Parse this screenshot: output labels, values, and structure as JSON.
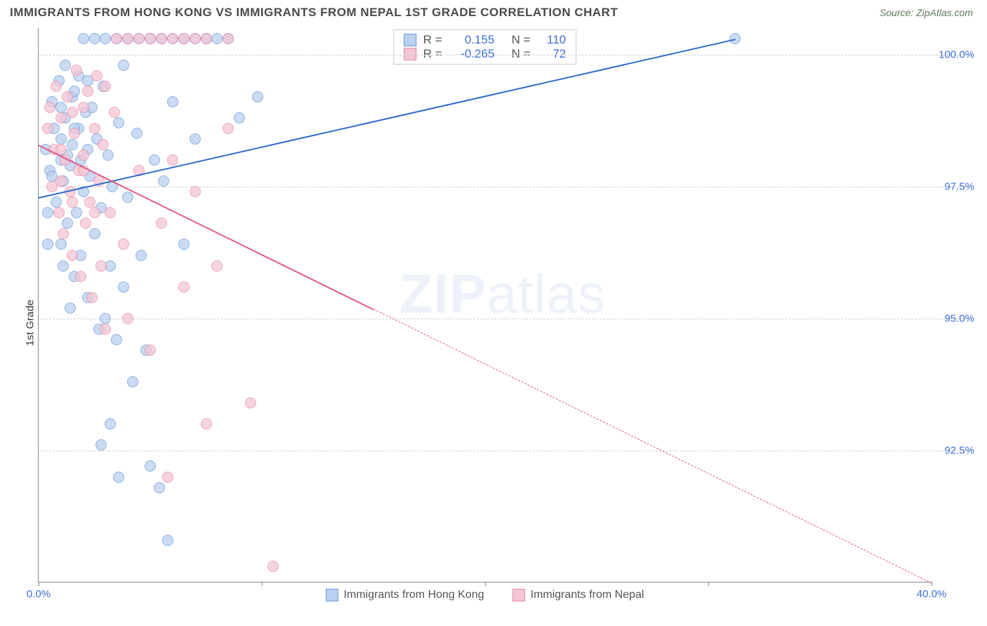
{
  "header": {
    "title": "IMMIGRANTS FROM HONG KONG VS IMMIGRANTS FROM NEPAL 1ST GRADE CORRELATION CHART",
    "title_color": "#4a4a4a",
    "source_label": "Source: ZipAtlas.com",
    "source_color": "#5a7a5a"
  },
  "chart": {
    "type": "scatter",
    "ylabel": "1st Grade",
    "ylabel_color": "#333333",
    "background_color": "#ffffff",
    "grid_color": "#d0d0d0",
    "axis_color": "#888888",
    "xlim": [
      0,
      40
    ],
    "ylim": [
      90,
      100.5
    ],
    "xticks": [
      0,
      10,
      20,
      30,
      40
    ],
    "xtick_labels": [
      "0.0%",
      "",
      "",
      "",
      "40.0%"
    ],
    "xtick_label_color": "#3b6fd6",
    "yticks": [
      92.5,
      95.0,
      97.5,
      100.0
    ],
    "ytick_labels": [
      "92.5%",
      "95.0%",
      "97.5%",
      "100.0%"
    ],
    "ytick_label_color": "#3b6fd6",
    "watermark": {
      "prefix": "ZIP",
      "suffix": "atlas",
      "color": "#9db7e0"
    },
    "series": [
      {
        "name": "Immigrants from Hong Kong",
        "key": "hk",
        "fill": "#b9d0ef",
        "stroke": "#6a99d8",
        "trend_color": "#2f6bd0",
        "trend_width": 2.5,
        "trend_dash": "solid",
        "marker_radius": 8,
        "R": 0.155,
        "N": 110,
        "trend_start": [
          0,
          97.3
        ],
        "trend_end": [
          31.2,
          100.3
        ],
        "points": [
          [
            0.3,
            98.2
          ],
          [
            0.5,
            97.8
          ],
          [
            0.6,
            99.1
          ],
          [
            0.7,
            98.6
          ],
          [
            0.8,
            97.2
          ],
          [
            0.9,
            99.5
          ],
          [
            1.0,
            98.0
          ],
          [
            1.0,
            96.4
          ],
          [
            1.1,
            97.6
          ],
          [
            1.2,
            98.8
          ],
          [
            1.2,
            99.8
          ],
          [
            1.3,
            96.8
          ],
          [
            1.4,
            97.9
          ],
          [
            1.5,
            98.3
          ],
          [
            1.5,
            99.2
          ],
          [
            1.6,
            95.8
          ],
          [
            1.7,
            97.0
          ],
          [
            1.8,
            98.6
          ],
          [
            1.8,
            99.6
          ],
          [
            1.9,
            96.2
          ],
          [
            2.0,
            97.4
          ],
          [
            2.0,
            100.3
          ],
          [
            2.1,
            98.9
          ],
          [
            2.2,
            95.4
          ],
          [
            2.3,
            97.7
          ],
          [
            2.4,
            99.0
          ],
          [
            2.5,
            96.6
          ],
          [
            2.5,
            100.3
          ],
          [
            2.6,
            98.4
          ],
          [
            2.7,
            94.8
          ],
          [
            2.8,
            97.1
          ],
          [
            2.9,
            99.4
          ],
          [
            3.0,
            95.0
          ],
          [
            3.0,
            100.3
          ],
          [
            3.1,
            98.1
          ],
          [
            3.2,
            96.0
          ],
          [
            3.3,
            97.5
          ],
          [
            3.5,
            100.3
          ],
          [
            3.5,
            94.6
          ],
          [
            3.6,
            98.7
          ],
          [
            3.8,
            95.6
          ],
          [
            3.8,
            99.8
          ],
          [
            4.0,
            97.3
          ],
          [
            4.0,
            100.3
          ],
          [
            4.2,
            93.8
          ],
          [
            4.4,
            98.5
          ],
          [
            4.5,
            100.3
          ],
          [
            4.6,
            96.2
          ],
          [
            4.8,
            94.4
          ],
          [
            5.0,
            100.3
          ],
          [
            5.0,
            92.2
          ],
          [
            5.2,
            98.0
          ],
          [
            5.4,
            91.8
          ],
          [
            5.5,
            100.3
          ],
          [
            5.6,
            97.6
          ],
          [
            5.8,
            90.8
          ],
          [
            6.0,
            99.1
          ],
          [
            6.0,
            100.3
          ],
          [
            6.5,
            100.3
          ],
          [
            6.5,
            96.4
          ],
          [
            7.0,
            100.3
          ],
          [
            7.0,
            98.4
          ],
          [
            7.5,
            100.3
          ],
          [
            8.0,
            100.3
          ],
          [
            8.5,
            100.3
          ],
          [
            9.0,
            98.8
          ],
          [
            9.8,
            99.2
          ],
          [
            31.2,
            100.3
          ],
          [
            1.0,
            98.4
          ],
          [
            1.0,
            99.0
          ],
          [
            1.3,
            98.1
          ],
          [
            1.6,
            98.6
          ],
          [
            1.6,
            99.3
          ],
          [
            1.9,
            98.0
          ],
          [
            2.2,
            98.2
          ],
          [
            2.2,
            99.5
          ],
          [
            0.4,
            97.0
          ],
          [
            0.4,
            96.4
          ],
          [
            0.6,
            97.7
          ],
          [
            1.1,
            96.0
          ],
          [
            1.4,
            95.2
          ],
          [
            2.8,
            92.6
          ],
          [
            3.2,
            93.0
          ],
          [
            3.6,
            92.0
          ]
        ]
      },
      {
        "name": "Immigrants from Nepal",
        "key": "np",
        "fill": "#f4c6d4",
        "stroke": "#e88aa8",
        "trend_color": "#e05a87",
        "trend_width": 2,
        "trend_dash": "solid_then_dashed",
        "marker_radius": 8,
        "R": -0.265,
        "N": 72,
        "trend_start": [
          0,
          98.3
        ],
        "trend_end": [
          40,
          90.0
        ],
        "trend_solid_until_x": 15,
        "points": [
          [
            0.4,
            98.6
          ],
          [
            0.5,
            99.0
          ],
          [
            0.6,
            97.5
          ],
          [
            0.7,
            98.2
          ],
          [
            0.8,
            99.4
          ],
          [
            0.9,
            97.0
          ],
          [
            1.0,
            98.8
          ],
          [
            1.1,
            96.6
          ],
          [
            1.2,
            98.0
          ],
          [
            1.3,
            99.2
          ],
          [
            1.4,
            97.4
          ],
          [
            1.5,
            96.2
          ],
          [
            1.6,
            98.5
          ],
          [
            1.7,
            99.7
          ],
          [
            1.8,
            97.8
          ],
          [
            1.9,
            95.8
          ],
          [
            2.0,
            98.1
          ],
          [
            2.1,
            96.8
          ],
          [
            2.2,
            99.3
          ],
          [
            2.3,
            97.2
          ],
          [
            2.4,
            95.4
          ],
          [
            2.5,
            98.6
          ],
          [
            2.6,
            99.6
          ],
          [
            2.7,
            97.6
          ],
          [
            2.8,
            96.0
          ],
          [
            2.9,
            98.3
          ],
          [
            3.0,
            94.8
          ],
          [
            3.2,
            97.0
          ],
          [
            3.4,
            98.9
          ],
          [
            3.5,
            100.3
          ],
          [
            3.8,
            96.4
          ],
          [
            4.0,
            100.3
          ],
          [
            4.0,
            95.0
          ],
          [
            4.5,
            97.8
          ],
          [
            4.5,
            100.3
          ],
          [
            5.0,
            94.4
          ],
          [
            5.0,
            100.3
          ],
          [
            5.5,
            96.8
          ],
          [
            5.5,
            100.3
          ],
          [
            5.8,
            92.0
          ],
          [
            6.0,
            100.3
          ],
          [
            6.0,
            98.0
          ],
          [
            6.5,
            100.3
          ],
          [
            6.5,
            95.6
          ],
          [
            7.0,
            97.4
          ],
          [
            7.0,
            100.3
          ],
          [
            7.5,
            100.3
          ],
          [
            7.5,
            93.0
          ],
          [
            8.0,
            96.0
          ],
          [
            8.5,
            100.3
          ],
          [
            8.5,
            98.6
          ],
          [
            9.5,
            93.4
          ],
          [
            10.5,
            90.3
          ],
          [
            1.0,
            98.2
          ],
          [
            1.0,
            97.6
          ],
          [
            1.5,
            98.9
          ],
          [
            1.5,
            97.2
          ],
          [
            2.0,
            99.0
          ],
          [
            2.0,
            97.8
          ],
          [
            2.5,
            97.0
          ],
          [
            3.0,
            99.4
          ]
        ]
      }
    ],
    "stats_box": {
      "border_color": "#cccccc",
      "text_color": "#555555",
      "value_color": "#3b6fd6"
    },
    "legend_text_color": "#555555"
  }
}
